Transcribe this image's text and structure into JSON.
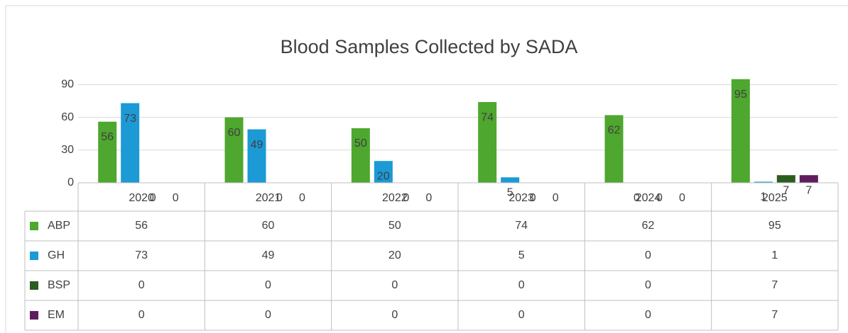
{
  "chart_data": {
    "type": "bar",
    "title": "Blood Samples Collected by SADA",
    "categories": [
      "2020",
      "2021",
      "2022",
      "2023",
      "2024",
      "2025"
    ],
    "series": [
      {
        "name": "ABP",
        "color": "#4ea72e",
        "values": [
          56,
          60,
          50,
          74,
          62,
          95
        ]
      },
      {
        "name": "GH",
        "color": "#1b9ad6",
        "values": [
          73,
          49,
          20,
          5,
          0,
          1
        ]
      },
      {
        "name": "BSP",
        "color": "#2b5d1f",
        "values": [
          0,
          0,
          0,
          0,
          0,
          7
        ]
      },
      {
        "name": "EM",
        "color": "#5f1c5e",
        "values": [
          0,
          0,
          0,
          0,
          0,
          7
        ]
      }
    ],
    "ylim": [
      0,
      100
    ],
    "yticks": [
      0,
      30,
      60,
      90
    ],
    "grid": true,
    "data_table": true
  }
}
